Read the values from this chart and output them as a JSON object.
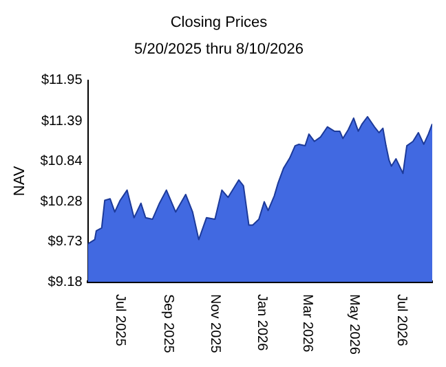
{
  "chart_data": {
    "type": "area",
    "title": "Closing Prices",
    "subtitle": "5/20/2025 thru 8/10/2026",
    "ylabel": "NAV",
    "x": [
      "2025-05-20",
      "2025-05-29",
      "2025-05-31",
      "2025-06-07",
      "2025-06-11",
      "2025-06-18",
      "2025-06-24",
      "2025-07-01",
      "2025-07-10",
      "2025-07-19",
      "2025-07-28",
      "2025-08-03",
      "2025-08-12",
      "2025-08-21",
      "2025-08-30",
      "2025-09-11",
      "2025-09-24",
      "2025-10-03",
      "2025-10-11",
      "2025-10-21",
      "2025-11-01",
      "2025-11-10",
      "2025-11-18",
      "2025-12-02",
      "2025-12-08",
      "2025-12-15",
      "2025-12-20",
      "2025-12-28",
      "2026-01-04",
      "2026-01-09",
      "2026-01-17",
      "2026-01-22",
      "2026-01-29",
      "2026-02-06",
      "2026-02-13",
      "2026-02-18",
      "2026-02-26",
      "2026-03-03",
      "2026-03-10",
      "2026-03-18",
      "2026-03-27",
      "2026-04-05",
      "2026-04-12",
      "2026-04-16",
      "2026-04-23",
      "2026-04-30",
      "2026-05-06",
      "2026-05-11",
      "2026-05-18",
      "2026-05-27",
      "2026-06-02",
      "2026-06-07",
      "2026-06-11",
      "2026-06-15",
      "2026-06-18",
      "2026-06-24",
      "2026-07-03",
      "2026-07-08",
      "2026-07-16",
      "2026-07-23",
      "2026-07-30",
      "2026-08-05",
      "2026-08-10"
    ],
    "series": [
      {
        "color": "#4169e1",
        "values": [
          9.7,
          9.76,
          9.88,
          9.92,
          10.3,
          10.32,
          10.14,
          10.3,
          10.44,
          10.06,
          10.26,
          10.06,
          10.04,
          10.26,
          10.44,
          10.14,
          10.38,
          10.14,
          9.76,
          10.06,
          10.04,
          10.44,
          10.34,
          10.58,
          10.5,
          9.96,
          9.96,
          10.04,
          10.28,
          10.16,
          10.36,
          10.54,
          10.74,
          10.88,
          11.05,
          11.07,
          11.05,
          11.21,
          11.11,
          11.17,
          11.31,
          11.25,
          11.25,
          11.15,
          11.27,
          11.43,
          11.25,
          11.35,
          11.45,
          11.31,
          11.23,
          11.29,
          11.05,
          10.85,
          10.77,
          10.87,
          10.67,
          11.05,
          11.11,
          11.23,
          11.07,
          11.21,
          11.35
        ]
      }
    ],
    "ylim": [
      9.18,
      11.95
    ],
    "yticks": [
      {
        "value": 9.18,
        "label": "$9.18"
      },
      {
        "value": 9.73,
        "label": "$9.73"
      },
      {
        "value": 10.28,
        "label": "$10.28"
      },
      {
        "value": 10.84,
        "label": "$10.84"
      },
      {
        "value": 11.39,
        "label": "$11.39"
      },
      {
        "value": 11.95,
        "label": "$11.95"
      }
    ],
    "xlim": [
      "2025-05-20",
      "2026-08-10"
    ],
    "xticks": [
      {
        "value": "2025-07-01",
        "label": "Jul 2025"
      },
      {
        "value": "2025-09-01",
        "label": "Sep 2025"
      },
      {
        "value": "2025-11-01",
        "label": "Nov 2025"
      },
      {
        "value": "2026-01-01",
        "label": "Jan 2026"
      },
      {
        "value": "2026-03-01",
        "label": "Mar 2026"
      },
      {
        "value": "2026-05-01",
        "label": "May 2026"
      },
      {
        "value": "2026-07-01",
        "label": "Jul 2026"
      }
    ],
    "grid": false,
    "legend": false
  }
}
